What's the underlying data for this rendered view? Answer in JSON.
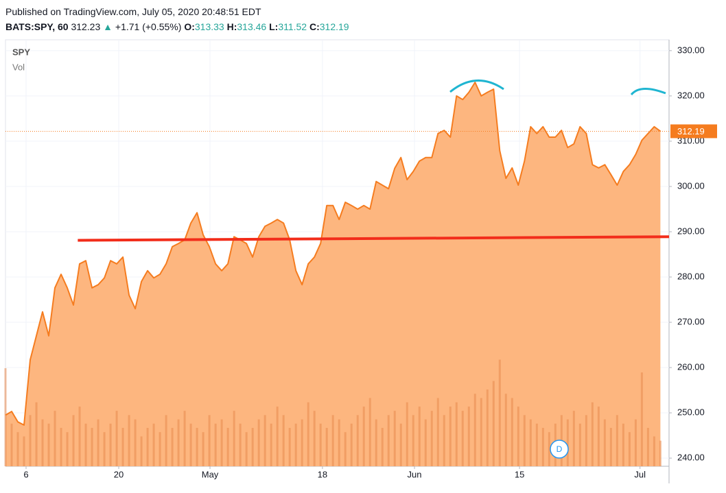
{
  "header": {
    "published": "Published on TradingView.com, July 05, 2020 20:48:51 EDT",
    "symbol": "BATS:SPY, 60",
    "last": "312.23",
    "change": "+1.71 (+0.55%)",
    "ohlc": [
      {
        "label": "O:",
        "value": "313.33"
      },
      {
        "label": "H:",
        "value": "313.46"
      },
      {
        "label": "L:",
        "value": "311.52"
      },
      {
        "label": "C:",
        "value": "312.19"
      }
    ]
  },
  "chart_data": {
    "type": "area",
    "series": [
      {
        "name": "SPY",
        "color": "#f57c1f",
        "fill": "#fdb67f",
        "values": [
          249.5,
          250.3,
          248,
          247.3,
          261.7,
          267,
          272.3,
          267,
          277.6,
          280.6,
          277.6,
          273.8,
          282.9,
          283.6,
          277.6,
          278.3,
          279.8,
          283.6,
          282.9,
          284.4,
          276,
          273,
          279,
          281.4,
          279.8,
          280.6,
          282.9,
          286.7,
          287.4,
          288.2,
          291.9,
          294.2,
          289.3,
          286.7,
          282.9,
          281.4,
          282.9,
          288.9,
          288.2,
          287.4,
          284.4,
          288.9,
          291.2,
          291.9,
          292.7,
          291.9,
          288.2,
          281.4,
          278.3,
          282.9,
          284.4,
          287.4,
          295.8,
          295.8,
          292.7,
          296.5,
          295.8,
          295,
          295.8,
          295,
          301.1,
          300.3,
          299.5,
          304,
          306.4,
          301.5,
          303.3,
          305.6,
          306.4,
          306.4,
          311.7,
          312.4,
          310.9,
          320,
          319.2,
          320.8,
          323,
          320,
          320.8,
          321.5,
          307.9,
          301.8,
          304.1,
          300.3,
          305.6,
          313.2,
          311.7,
          313.2,
          310.9,
          310.9,
          312.4,
          308.6,
          309.4,
          313.2,
          311.7,
          304.8,
          304.1,
          304.8,
          302.6,
          300.3,
          303.3,
          304.8,
          307.1,
          310.2,
          311.7,
          313.2,
          312.2
        ]
      }
    ],
    "volume": {
      "name": "Vol",
      "color": "#e88a4f",
      "ylim": [
        0,
        100
      ],
      "values": [
        23,
        10,
        8,
        7,
        12,
        15,
        11,
        10,
        13,
        9,
        8,
        12,
        14,
        10,
        9,
        11,
        8,
        10,
        13,
        9,
        12,
        11,
        7,
        9,
        10,
        8,
        12,
        9,
        11,
        13,
        10,
        9,
        8,
        12,
        10,
        11,
        9,
        13,
        10,
        8,
        9,
        11,
        12,
        10,
        14,
        12,
        9,
        10,
        11,
        15,
        13,
        10,
        9,
        12,
        11,
        8,
        10,
        12,
        14,
        16,
        11,
        9,
        12,
        13,
        10,
        15,
        12,
        14,
        11,
        13,
        16,
        12,
        14,
        15,
        13,
        14,
        17,
        16,
        18,
        20,
        25,
        17,
        16,
        14,
        12,
        11,
        10,
        9,
        8,
        10,
        12,
        11,
        13,
        10,
        12,
        15,
        14,
        11,
        9,
        12,
        10,
        8,
        11,
        22,
        9,
        7,
        6
      ]
    },
    "lines": [
      {
        "color": "#f22d1b",
        "x": [
          11.7,
          107.4
        ],
        "y": [
          288.1,
          288.9
        ]
      }
    ],
    "last_value": 312.19,
    "last_color": "#f57c1f",
    "xlim": [
      0,
      107.4
    ],
    "xticks": [
      {
        "value": 3.33,
        "label": "6"
      },
      {
        "value": 18.33,
        "label": "20"
      },
      {
        "value": 33.1,
        "label": "May"
      },
      {
        "value": 51.3,
        "label": "18"
      },
      {
        "value": 66.2,
        "label": "Jun"
      },
      {
        "value": 83.2,
        "label": "15"
      },
      {
        "value": 102.7,
        "label": "Jul"
      }
    ],
    "ylim": [
      238.2,
      332.4
    ],
    "yticks": [
      {
        "value": 240,
        "label": "240.00"
      },
      {
        "value": 250,
        "label": "250.00"
      },
      {
        "value": 260,
        "label": "260.00"
      },
      {
        "value": 270,
        "label": "270.00"
      },
      {
        "value": 280,
        "label": "280.00"
      },
      {
        "value": 290,
        "label": "290.00"
      },
      {
        "value": 300,
        "label": "300.00"
      },
      {
        "value": 310,
        "label": "310.00"
      },
      {
        "value": 320,
        "label": "320.00"
      },
      {
        "value": 330,
        "label": "330.00"
      }
    ],
    "grid": true,
    "event_marker": "D"
  }
}
